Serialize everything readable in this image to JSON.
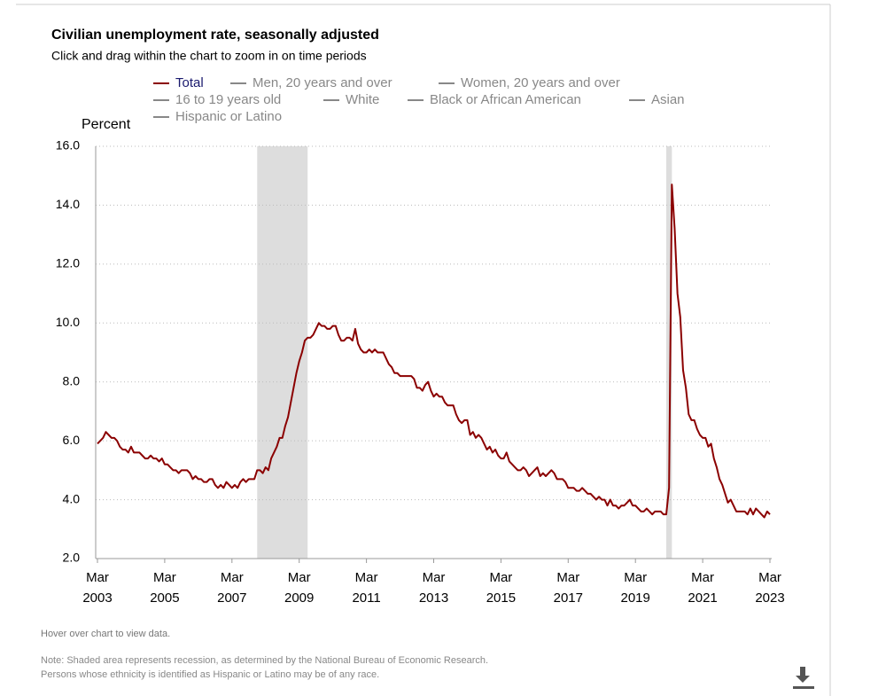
{
  "chart_data": {
    "type": "line",
    "title": "Civilian unemployment rate, seasonally adjusted",
    "subtitle": "Click and drag within the chart to zoom in on time periods",
    "y_label": "Percent",
    "hover_note": "Hover over chart to view data.",
    "notes": [
      "Note: Shaded area represents recession, as determined by the National Bureau of Economic Research.",
      "Persons whose ethnicity is identified as Hispanic or Latino may be of any race."
    ],
    "x": [
      "2003-03",
      "2003-04",
      "2003-05",
      "2003-06",
      "2003-07",
      "2003-08",
      "2003-09",
      "2003-10",
      "2003-11",
      "2003-12",
      "2004-01",
      "2004-02",
      "2004-03",
      "2004-04",
      "2004-05",
      "2004-06",
      "2004-07",
      "2004-08",
      "2004-09",
      "2004-10",
      "2004-11",
      "2004-12",
      "2005-01",
      "2005-02",
      "2005-03",
      "2005-04",
      "2005-05",
      "2005-06",
      "2005-07",
      "2005-08",
      "2005-09",
      "2005-10",
      "2005-11",
      "2005-12",
      "2006-01",
      "2006-02",
      "2006-03",
      "2006-04",
      "2006-05",
      "2006-06",
      "2006-07",
      "2006-08",
      "2006-09",
      "2006-10",
      "2006-11",
      "2006-12",
      "2007-01",
      "2007-02",
      "2007-03",
      "2007-04",
      "2007-05",
      "2007-06",
      "2007-07",
      "2007-08",
      "2007-09",
      "2007-10",
      "2007-11",
      "2007-12",
      "2008-01",
      "2008-02",
      "2008-03",
      "2008-04",
      "2008-05",
      "2008-06",
      "2008-07",
      "2008-08",
      "2008-09",
      "2008-10",
      "2008-11",
      "2008-12",
      "2009-01",
      "2009-02",
      "2009-03",
      "2009-04",
      "2009-05",
      "2009-06",
      "2009-07",
      "2009-08",
      "2009-09",
      "2009-10",
      "2009-11",
      "2009-12",
      "2010-01",
      "2010-02",
      "2010-03",
      "2010-04",
      "2010-05",
      "2010-06",
      "2010-07",
      "2010-08",
      "2010-09",
      "2010-10",
      "2010-11",
      "2010-12",
      "2011-01",
      "2011-02",
      "2011-03",
      "2011-04",
      "2011-05",
      "2011-06",
      "2011-07",
      "2011-08",
      "2011-09",
      "2011-10",
      "2011-11",
      "2011-12",
      "2012-01",
      "2012-02",
      "2012-03",
      "2012-04",
      "2012-05",
      "2012-06",
      "2012-07",
      "2012-08",
      "2012-09",
      "2012-10",
      "2012-11",
      "2012-12",
      "2013-01",
      "2013-02",
      "2013-03",
      "2013-04",
      "2013-05",
      "2013-06",
      "2013-07",
      "2013-08",
      "2013-09",
      "2013-10",
      "2013-11",
      "2013-12",
      "2014-01",
      "2014-02",
      "2014-03",
      "2014-04",
      "2014-05",
      "2014-06",
      "2014-07",
      "2014-08",
      "2014-09",
      "2014-10",
      "2014-11",
      "2014-12",
      "2015-01",
      "2015-02",
      "2015-03",
      "2015-04",
      "2015-05",
      "2015-06",
      "2015-07",
      "2015-08",
      "2015-09",
      "2015-10",
      "2015-11",
      "2015-12",
      "2016-01",
      "2016-02",
      "2016-03",
      "2016-04",
      "2016-05",
      "2016-06",
      "2016-07",
      "2016-08",
      "2016-09",
      "2016-10",
      "2016-11",
      "2016-12",
      "2017-01",
      "2017-02",
      "2017-03",
      "2017-04",
      "2017-05",
      "2017-06",
      "2017-07",
      "2017-08",
      "2017-09",
      "2017-10",
      "2017-11",
      "2017-12",
      "2018-01",
      "2018-02",
      "2018-03",
      "2018-04",
      "2018-05",
      "2018-06",
      "2018-07",
      "2018-08",
      "2018-09",
      "2018-10",
      "2018-11",
      "2018-12",
      "2019-01",
      "2019-02",
      "2019-03",
      "2019-04",
      "2019-05",
      "2019-06",
      "2019-07",
      "2019-08",
      "2019-09",
      "2019-10",
      "2019-11",
      "2019-12",
      "2020-01",
      "2020-02",
      "2020-03",
      "2020-04",
      "2020-05",
      "2020-06",
      "2020-07",
      "2020-08",
      "2020-09",
      "2020-10",
      "2020-11",
      "2020-12",
      "2021-01",
      "2021-02",
      "2021-03",
      "2021-04",
      "2021-05",
      "2021-06",
      "2021-07",
      "2021-08",
      "2021-09",
      "2021-10",
      "2021-11",
      "2021-12",
      "2022-01",
      "2022-02",
      "2022-03",
      "2022-04",
      "2022-05",
      "2022-06",
      "2022-07",
      "2022-08",
      "2022-09",
      "2022-10",
      "2022-11",
      "2022-12",
      "2023-01",
      "2023-02",
      "2023-03"
    ],
    "series": [
      {
        "name": "Total",
        "color": "#8b0000",
        "values": [
          5.9,
          6.0,
          6.1,
          6.3,
          6.2,
          6.1,
          6.1,
          6.0,
          5.8,
          5.7,
          5.7,
          5.6,
          5.8,
          5.6,
          5.6,
          5.6,
          5.5,
          5.4,
          5.4,
          5.5,
          5.4,
          5.4,
          5.3,
          5.4,
          5.2,
          5.2,
          5.1,
          5.0,
          5.0,
          4.9,
          5.0,
          5.0,
          5.0,
          4.9,
          4.7,
          4.8,
          4.7,
          4.7,
          4.6,
          4.6,
          4.7,
          4.7,
          4.5,
          4.4,
          4.5,
          4.4,
          4.6,
          4.5,
          4.4,
          4.5,
          4.4,
          4.6,
          4.7,
          4.6,
          4.7,
          4.7,
          4.7,
          5.0,
          5.0,
          4.9,
          5.1,
          5.0,
          5.4,
          5.6,
          5.8,
          6.1,
          6.1,
          6.5,
          6.8,
          7.3,
          7.8,
          8.3,
          8.7,
          9.0,
          9.4,
          9.5,
          9.5,
          9.6,
          9.8,
          10.0,
          9.9,
          9.9,
          9.8,
          9.8,
          9.9,
          9.9,
          9.6,
          9.4,
          9.4,
          9.5,
          9.5,
          9.4,
          9.8,
          9.3,
          9.1,
          9.0,
          9.0,
          9.1,
          9.0,
          9.1,
          9.0,
          9.0,
          9.0,
          8.8,
          8.6,
          8.5,
          8.3,
          8.3,
          8.2,
          8.2,
          8.2,
          8.2,
          8.2,
          8.1,
          7.8,
          7.8,
          7.7,
          7.9,
          8.0,
          7.7,
          7.5,
          7.6,
          7.5,
          7.5,
          7.3,
          7.2,
          7.2,
          7.2,
          6.9,
          6.7,
          6.6,
          6.7,
          6.7,
          6.2,
          6.3,
          6.1,
          6.2,
          6.1,
          5.9,
          5.7,
          5.8,
          5.6,
          5.7,
          5.5,
          5.4,
          5.4,
          5.6,
          5.3,
          5.2,
          5.1,
          5.0,
          5.0,
          5.1,
          5.0,
          4.8,
          4.9,
          5.0,
          5.1,
          4.8,
          4.9,
          4.8,
          4.9,
          5.0,
          4.9,
          4.7,
          4.7,
          4.7,
          4.6,
          4.4,
          4.4,
          4.4,
          4.3,
          4.3,
          4.4,
          4.3,
          4.2,
          4.2,
          4.1,
          4.0,
          4.1,
          4.0,
          4.0,
          3.8,
          4.0,
          3.8,
          3.8,
          3.7,
          3.8,
          3.8,
          3.9,
          4.0,
          3.8,
          3.8,
          3.7,
          3.6,
          3.6,
          3.7,
          3.6,
          3.5,
          3.6,
          3.6,
          3.6,
          3.5,
          3.5,
          4.4,
          14.7,
          13.2,
          11.0,
          10.2,
          8.4,
          7.8,
          6.9,
          6.7,
          6.7,
          6.4,
          6.2,
          6.1,
          6.1,
          5.8,
          5.9,
          5.4,
          5.1,
          4.7,
          4.5,
          4.2,
          3.9,
          4.0,
          3.8,
          3.6,
          3.6,
          3.6,
          3.6,
          3.5,
          3.7,
          3.5,
          3.7,
          3.6,
          3.5,
          3.4,
          3.6,
          3.5
        ]
      },
      {
        "name": "Men, 20 years and over",
        "color": "#888888"
      },
      {
        "name": "Women, 20 years and over",
        "color": "#888888"
      },
      {
        "name": "16 to 19 years old",
        "color": "#888888"
      },
      {
        "name": "White",
        "color": "#888888"
      },
      {
        "name": "Black or African American",
        "color": "#888888"
      },
      {
        "name": "Asian",
        "color": "#888888"
      },
      {
        "name": "Hispanic or Latino",
        "color": "#888888"
      }
    ],
    "recessions": [
      [
        "2007-12",
        "2009-06"
      ],
      [
        "2020-02",
        "2020-04"
      ]
    ],
    "recession_color": "#dddddd",
    "xlim": [
      "2003-03",
      "2023-03"
    ],
    "xticks": [
      {
        "value": "2003-03",
        "label": [
          "Mar",
          "2003"
        ]
      },
      {
        "value": "2005-03",
        "label": [
          "Mar",
          "2005"
        ]
      },
      {
        "value": "2007-03",
        "label": [
          "Mar",
          "2007"
        ]
      },
      {
        "value": "2009-03",
        "label": [
          "Mar",
          "2009"
        ]
      },
      {
        "value": "2011-03",
        "label": [
          "Mar",
          "2011"
        ]
      },
      {
        "value": "2013-03",
        "label": [
          "Mar",
          "2013"
        ]
      },
      {
        "value": "2015-03",
        "label": [
          "Mar",
          "2015"
        ]
      },
      {
        "value": "2017-03",
        "label": [
          "Mar",
          "2017"
        ]
      },
      {
        "value": "2019-03",
        "label": [
          "Mar",
          "2019"
        ]
      },
      {
        "value": "2021-03",
        "label": [
          "Mar",
          "2021"
        ]
      },
      {
        "value": "2023-03",
        "label": [
          "Mar",
          "2023"
        ]
      }
    ],
    "ylim": [
      2,
      16
    ],
    "yticks": [
      {
        "value": 2,
        "label": "2.0"
      },
      {
        "value": 4,
        "label": "4.0"
      },
      {
        "value": 6,
        "label": "6.0"
      },
      {
        "value": 8,
        "label": "8.0"
      },
      {
        "value": 10,
        "label": "10.0"
      },
      {
        "value": 12,
        "label": "12.0"
      },
      {
        "value": 14,
        "label": "14.0"
      },
      {
        "value": 16,
        "label": "16.0"
      }
    ],
    "grid": true
  }
}
